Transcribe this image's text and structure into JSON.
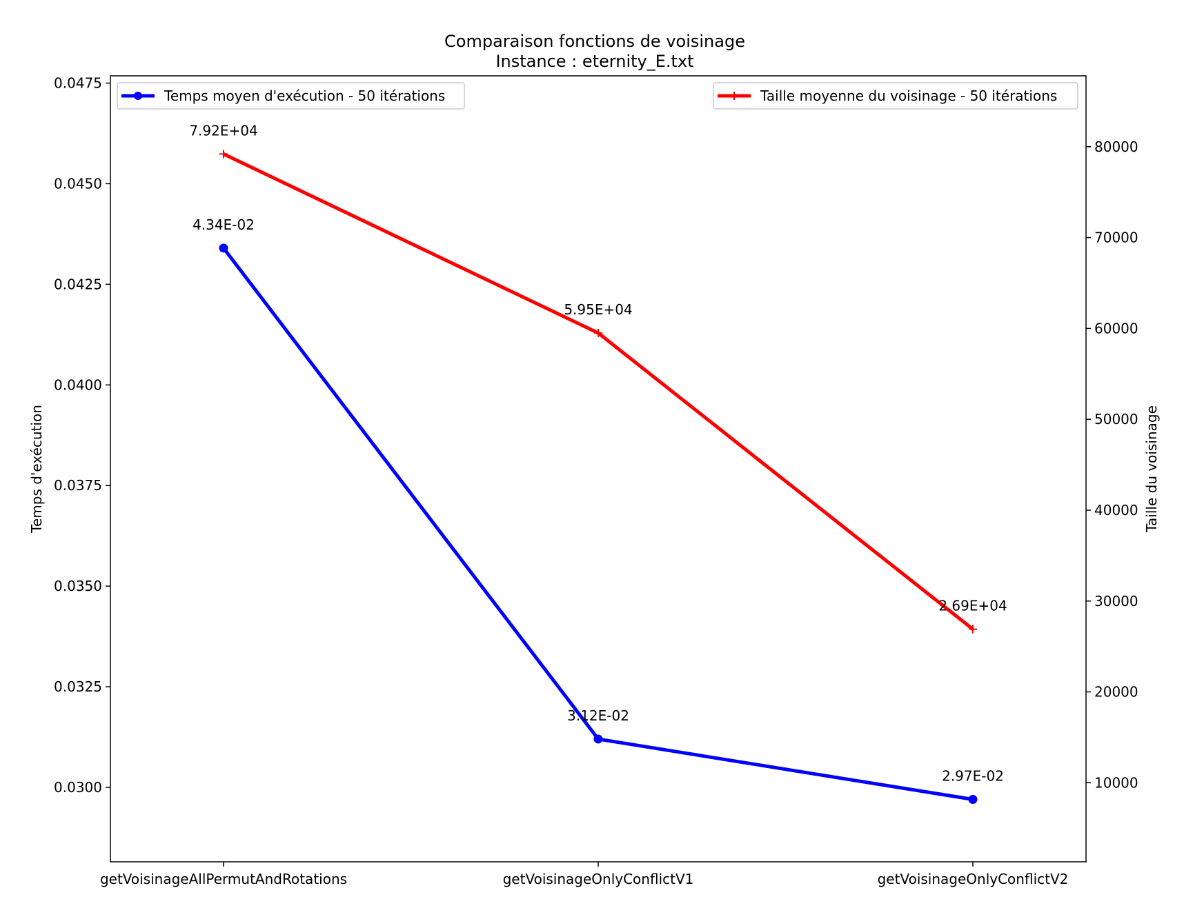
{
  "chart_data": {
    "type": "line",
    "title": "Comparaison fonctions de voisinage",
    "subtitle": "Instance : eternity_E.txt",
    "categories": [
      "getVoisinageAllPermutAndRotations",
      "getVoisinageOnlyConflictV1",
      "getVoisinageOnlyConflictV2"
    ],
    "y_left": {
      "label": "Temps d'exécution",
      "lim": [
        0.02815,
        0.04768
      ],
      "ticks": [
        0.03,
        0.0325,
        0.035,
        0.0375,
        0.04,
        0.0425,
        0.045,
        0.0475
      ],
      "tick_labels": [
        "0.0300",
        "0.0325",
        "0.0350",
        "0.0375",
        "0.0400",
        "0.0425",
        "0.0450",
        "0.0475"
      ]
    },
    "y_right": {
      "label": "Taille du voisinage",
      "lim": [
        1300,
        87800
      ],
      "ticks": [
        10000,
        20000,
        30000,
        40000,
        50000,
        60000,
        70000,
        80000
      ],
      "tick_labels": [
        "10000",
        "20000",
        "30000",
        "40000",
        "50000",
        "60000",
        "70000",
        "80000"
      ]
    },
    "series": [
      {
        "name": "Temps moyen d'exécution - 50 itérations",
        "axis": "left",
        "color": "#0000ff",
        "marker": "circle",
        "values": [
          0.0434,
          0.0312,
          0.0297
        ],
        "labels": [
          "4.34E-02",
          "3.12E-02",
          "2.97E-02"
        ]
      },
      {
        "name": "Taille moyenne du voisinage - 50 itérations",
        "axis": "right",
        "color": "#ff0000",
        "marker": "plus",
        "values": [
          79200,
          59500,
          26900
        ],
        "labels": [
          "7.92E+04",
          "5.95E+04",
          "2.69E+04"
        ]
      }
    ],
    "legends": [
      "top-left",
      "top-right"
    ],
    "grid": false
  }
}
